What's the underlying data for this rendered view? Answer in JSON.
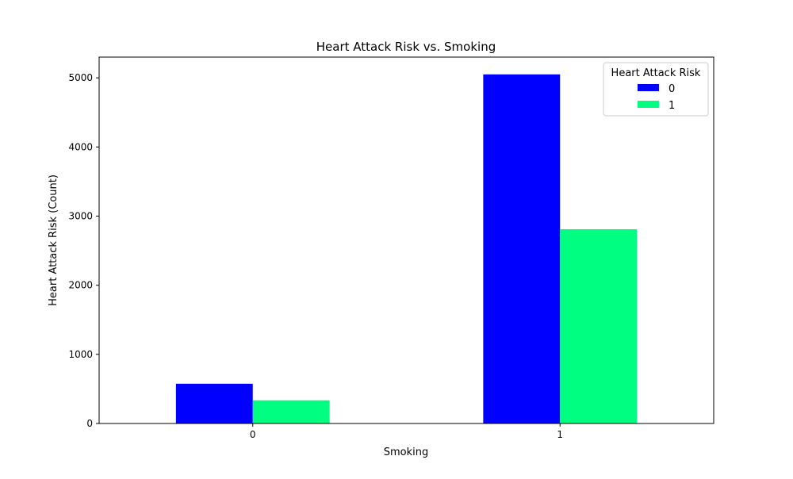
{
  "chart_data": {
    "type": "bar",
    "title": "Heart Attack Risk vs. Smoking",
    "xlabel": "Smoking",
    "ylabel": "Heart Attack Risk (Count)",
    "categories": [
      "0",
      "1"
    ],
    "series": [
      {
        "name": "0",
        "color": "#0000ff",
        "values": [
          575,
          5050
        ]
      },
      {
        "name": "1",
        "color": "#00ff80",
        "values": [
          335,
          2810
        ]
      }
    ],
    "ylim": [
      0,
      5300
    ],
    "yticks": [
      0,
      1000,
      2000,
      3000,
      4000,
      5000
    ],
    "ytick_labels": [
      "0",
      "1000",
      "2000",
      "3000",
      "4000",
      "5000"
    ],
    "grid": false,
    "legend": {
      "title": "Heart Attack Risk",
      "placement": "top-right"
    }
  }
}
